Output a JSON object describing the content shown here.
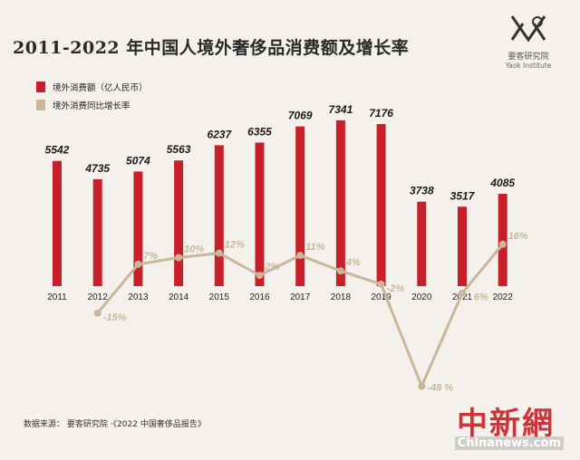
{
  "header": {
    "title": "2011-2022 年中国人境外奢侈品消费额及增长率",
    "logo_name": "要客研究院",
    "logo_en": "Yaok Institute"
  },
  "legend": {
    "bar_label": "境外消费额（亿人民币）",
    "line_label": "境外消费同比增长率"
  },
  "footer": {
    "source": "数据来源：  要客研究院  ·《2022 中国奢侈品报告》"
  },
  "watermark": {
    "cn": "中新網",
    "en": "Chinanews.com"
  },
  "colors": {
    "bar": "#c8202a",
    "line": "#c9b79a",
    "background": "#f4f1ec"
  },
  "chart_data": {
    "type": "bar",
    "title": "2011-2022 年中国人境外奢侈品消费额及增长率",
    "categories": [
      "2011",
      "2012",
      "2013",
      "2014",
      "2015",
      "2016",
      "2017",
      "2018",
      "2019",
      "2020",
      "2021",
      "2022"
    ],
    "series": [
      {
        "name": "境外消费额（亿人民币）",
        "type": "bar",
        "values": [
          5542,
          4735,
          5074,
          5563,
          6237,
          6355,
          7069,
          7341,
          7176,
          3738,
          3517,
          4085
        ],
        "labels": [
          "5542",
          "4735",
          "5074",
          "5563",
          "6237",
          "6355",
          "7069",
          "7341",
          "7176",
          "3738",
          "3517",
          "4085"
        ]
      },
      {
        "name": "境外消费同比增长率",
        "type": "line",
        "x": [
          "2012",
          "2013",
          "2014",
          "2015",
          "2016",
          "2017",
          "2018",
          "2019",
          "2020",
          "2021",
          "2022"
        ],
        "values": [
          -15,
          7,
          10,
          12,
          2,
          11,
          4,
          -2,
          -48,
          -6,
          16
        ],
        "labels": [
          "-15%",
          "7%",
          "10%",
          "12%",
          "2%",
          "11%",
          "4%",
          "-2%",
          "-48 %",
          "- 6%",
          "16%"
        ]
      }
    ],
    "grid": false,
    "legend_position": "top-left"
  }
}
